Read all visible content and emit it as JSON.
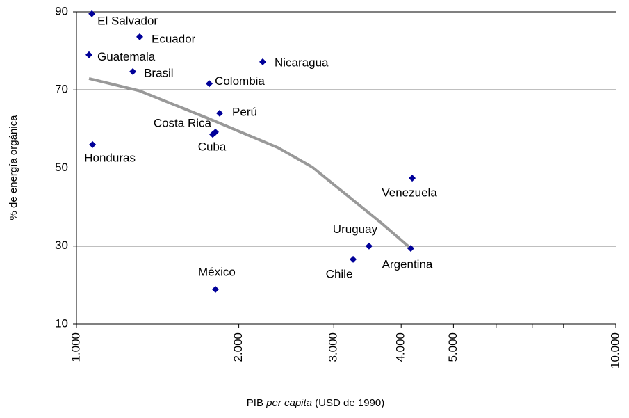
{
  "chart_data": {
    "type": "scatter",
    "x_label_parts": [
      "PIB ",
      "per capita",
      " (USD de 1990)"
    ],
    "y_label": "% de energía orgánica",
    "log_x": true,
    "grid": true,
    "xlim": [
      1000,
      10000
    ],
    "xticks": [
      {
        "value": 1000,
        "label": "1.000"
      },
      {
        "value": 2000,
        "label": "2.000"
      },
      {
        "value": 3000,
        "label": "3.000"
      },
      {
        "value": 4000,
        "label": "4.000"
      },
      {
        "value": 5000,
        "label": "5.000"
      },
      {
        "value": 10000,
        "label": "10.000"
      }
    ],
    "xminorticks": [
      6000,
      7000,
      8000,
      9000
    ],
    "ylim": [
      10,
      90
    ],
    "yticks": [
      10,
      30,
      50,
      70,
      90
    ],
    "series": [
      {
        "color": "#000099",
        "labels": [
          "El Salvador",
          "Ecuador",
          "Guatemala",
          "Brasil",
          "Nicaragua",
          "Colombia",
          "Perú",
          "Costa Rica",
          "Cuba",
          "Honduras",
          "Venezuela",
          "Uruguay",
          "Chile",
          "Argentina",
          "México"
        ],
        "x": [
          1068,
          1310,
          1055,
          1272,
          2215,
          1763,
          1843,
          1810,
          1789,
          1071,
          4193,
          3487,
          3258,
          4167,
          1810
        ],
        "values": [
          89.5,
          83.6,
          79.0,
          74.7,
          77.2,
          71.6,
          64.0,
          59.2,
          58.6,
          56.0,
          47.4,
          30.0,
          26.6,
          29.4,
          18.9
        ]
      },
      {
        "color": "#999999",
        "line": true,
        "x": [
          1055,
          1307,
          1755,
          2364,
          2738,
          3168,
          3668,
          4167
        ],
        "values": [
          72.9,
          69.8,
          62.7,
          55.2,
          50.2,
          43.1,
          36.0,
          29.4
        ]
      }
    ]
  }
}
